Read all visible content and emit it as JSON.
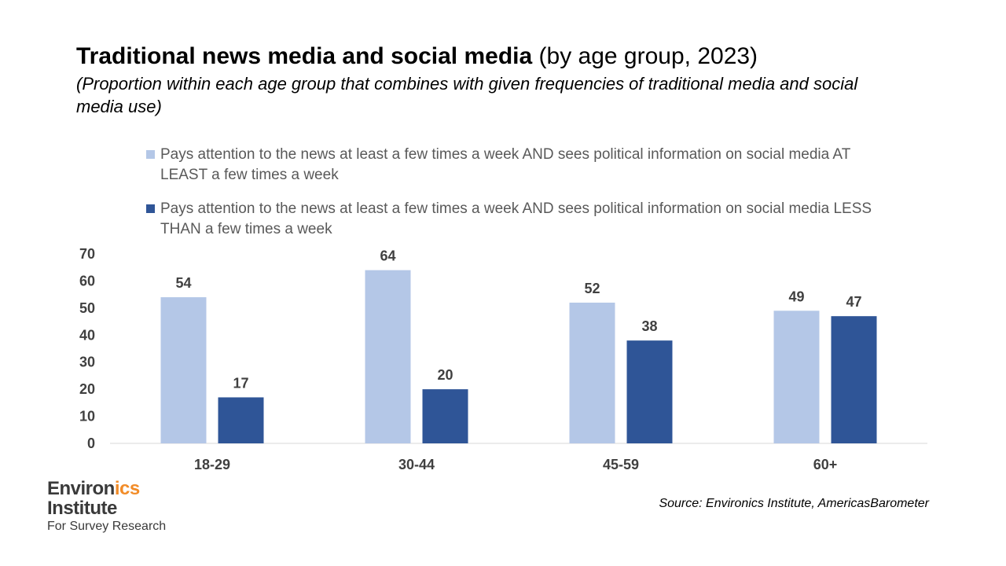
{
  "header": {
    "title_bold": "Traditional news media and social media",
    "title_rest": " (by age group, 2023)",
    "subtitle": "(Proportion within each age group that combines with given frequencies of traditional media and social media use)"
  },
  "legend": {
    "items": [
      {
        "label": "Pays attention to the news at least a few times a week AND sees political information on social media AT LEAST a few times a week",
        "color": "#b4c7e7"
      },
      {
        "label": "Pays attention to the news at least a few times a week AND sees political information on social media LESS THAN a few times a week",
        "color": "#2f5597"
      }
    ]
  },
  "chart_data": {
    "type": "bar",
    "title": "Traditional news media and social media (by age group, 2023)",
    "categories": [
      "18-29",
      "30-44",
      "45-59",
      "60+"
    ],
    "series": [
      {
        "name": "Pays attention to the news at least a few times a week AND sees political information on social media AT LEAST a few times a week",
        "values": [
          54,
          64,
          52,
          49
        ],
        "color": "#b4c7e7"
      },
      {
        "name": "Pays attention to the news at least a few times a week AND sees political information on social media LESS THAN a few times a week",
        "values": [
          17,
          20,
          38,
          47
        ],
        "color": "#2f5597"
      }
    ],
    "ylim": [
      0,
      70
    ],
    "yticks": [
      0,
      10,
      20,
      30,
      40,
      50,
      60,
      70
    ],
    "xlabel": "",
    "ylabel": "",
    "grid": false,
    "legend_position": "top"
  },
  "logo": {
    "line1_a": "Environ",
    "line1_b": "ics",
    "line2": "Institute",
    "line3": "For Survey Research"
  },
  "source": "Source: Environics Institute, AmericasBarometer"
}
